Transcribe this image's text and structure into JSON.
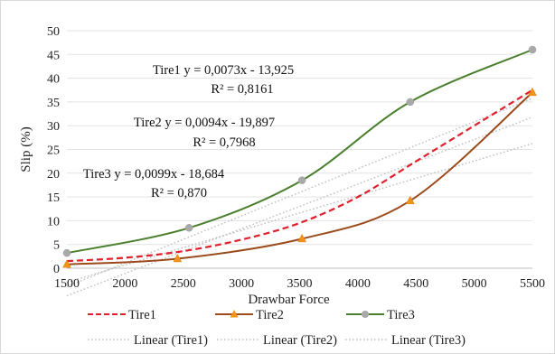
{
  "chart_data": {
    "type": "line",
    "xlabel": "Drawbar Force",
    "ylabel": "Slip (%)",
    "xlim": [
      1500,
      5500
    ],
    "ylim": [
      0,
      50
    ],
    "xticks": [
      "1500",
      "2000",
      "2500",
      "3000",
      "3500",
      "4000",
      "4500",
      "5000",
      "5500"
    ],
    "yticks": [
      "0",
      "5",
      "10",
      "15",
      "20",
      "25",
      "30",
      "35",
      "40",
      "45",
      "50"
    ],
    "grid": "horizontal",
    "legend_position": "bottom",
    "series": [
      {
        "name": "Tire1",
        "color": "#e0202a",
        "style": "dashed",
        "points": [
          [
            1500,
            1.5
          ],
          [
            2000,
            2.2
          ],
          [
            2500,
            3.6
          ],
          [
            3000,
            6.0
          ],
          [
            3500,
            9.5
          ],
          [
            4000,
            15.0
          ],
          [
            4500,
            22.5
          ],
          [
            5000,
            30.0
          ],
          [
            5500,
            37.5
          ]
        ]
      },
      {
        "name": "Tire2",
        "color": "#9b4a1c",
        "style": "solid",
        "marker": "triangle",
        "points": [
          [
            1500,
            0.8
          ],
          [
            2450,
            2.0
          ],
          [
            3520,
            6.2
          ],
          [
            4450,
            14.2
          ],
          [
            5500,
            37.0
          ]
        ]
      },
      {
        "name": "Tire3",
        "color": "#4a7f2e",
        "style": "solid",
        "marker": "circle",
        "points": [
          [
            1500,
            3.2
          ],
          [
            2550,
            8.5
          ],
          [
            3520,
            18.5
          ],
          [
            4450,
            35.0
          ],
          [
            5500,
            46.0
          ]
        ]
      },
      {
        "name": "Linear (Tire1)",
        "color": "#bbbbbb",
        "style": "dotted",
        "slope": 0.0073,
        "intercept": -13.925
      },
      {
        "name": "Linear (Tire2)",
        "color": "#bbbbbb",
        "style": "dotted",
        "slope": 0.0094,
        "intercept": -19.897
      },
      {
        "name": "Linear (Tire3)",
        "color": "#bbbbbb",
        "style": "dotted",
        "slope": 0.0099,
        "intercept": -18.684
      }
    ],
    "annotations": [
      {
        "equation": "Tire1 y = 0,0073x - 13,925",
        "r2": "R² = 0,8161"
      },
      {
        "equation": "Tire2 y = 0,0094x - 19,897",
        "r2": "R² = 0,7968"
      },
      {
        "equation": "Tire3 y = 0,0099x - 18,684",
        "r2": "R² = 0,870"
      }
    ],
    "legend": [
      "Tire1",
      "Tire2",
      "Tire3",
      "Linear (Tire1)",
      "Linear (Tire2)",
      "Linear (Tire3)"
    ]
  }
}
